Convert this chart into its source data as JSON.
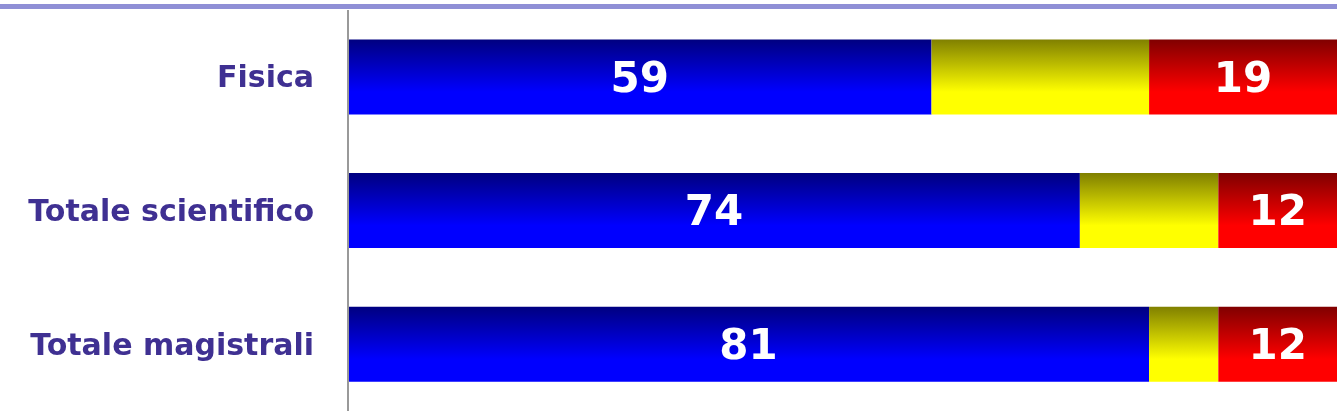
{
  "chart_data": {
    "type": "bar",
    "orientation": "horizontal",
    "stacked": true,
    "categories": [
      "Fisica",
      "Totale scientifico",
      "Totale magistrali"
    ],
    "series": [
      {
        "color": "#0000ff",
        "values": [
          59,
          74,
          81
        ],
        "value_labels": [
          "59",
          "74",
          "81"
        ]
      },
      {
        "color": "#ffff00",
        "values": [
          22,
          14,
          7
        ],
        "value_labels": [
          null,
          null,
          null
        ]
      },
      {
        "color": "#ff0000",
        "values": [
          19,
          12,
          12
        ],
        "value_labels": [
          "19",
          "12",
          "12"
        ]
      }
    ],
    "tick_labels": "y"
  }
}
